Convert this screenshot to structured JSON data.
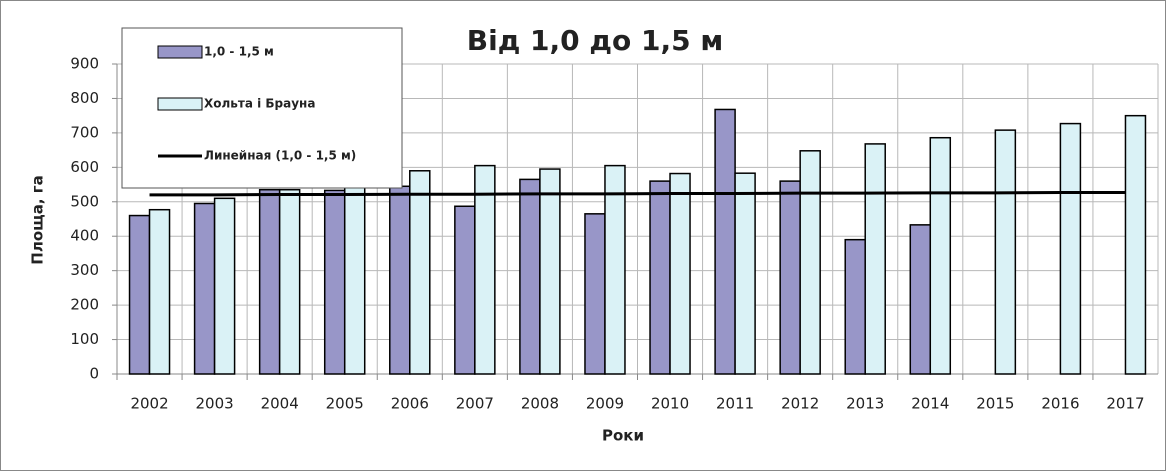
{
  "chart_data": {
    "type": "bar",
    "title": "Від 1,0 до 1,5 м",
    "x_label": "Роки",
    "y_label": "Площа, га",
    "categories": [
      "2002",
      "2003",
      "2004",
      "2005",
      "2006",
      "2007",
      "2008",
      "2009",
      "2010",
      "2011",
      "2012",
      "2013",
      "2014",
      "2015",
      "2016",
      "2017"
    ],
    "series": [
      {
        "name": "1,0 - 1,5 м",
        "type": "bar",
        "color": "#9896c8",
        "values": [
          460,
          495,
          535,
          533,
          545,
          487,
          565,
          465,
          560,
          768,
          560,
          390,
          433,
          null,
          null,
          null
        ]
      },
      {
        "name": "Хольта і Брауна",
        "type": "bar",
        "color": "#daf2f6",
        "values": [
          477,
          510,
          535,
          570,
          590,
          605,
          595,
          605,
          582,
          583,
          648,
          668,
          686,
          708,
          727,
          750
        ]
      },
      {
        "name": "Линейная (1,0 - 1,5 м)",
        "type": "line",
        "color": "#000000",
        "values": [
          520,
          520,
          521,
          521,
          522,
          522,
          523,
          523,
          524,
          524,
          525,
          525,
          526,
          526,
          527,
          527
        ]
      }
    ],
    "ylim": [
      0,
      900
    ],
    "yticks": [
      0,
      100,
      200,
      300,
      400,
      500,
      600,
      700,
      800,
      900
    ],
    "grid": true,
    "legend": "top-left"
  }
}
